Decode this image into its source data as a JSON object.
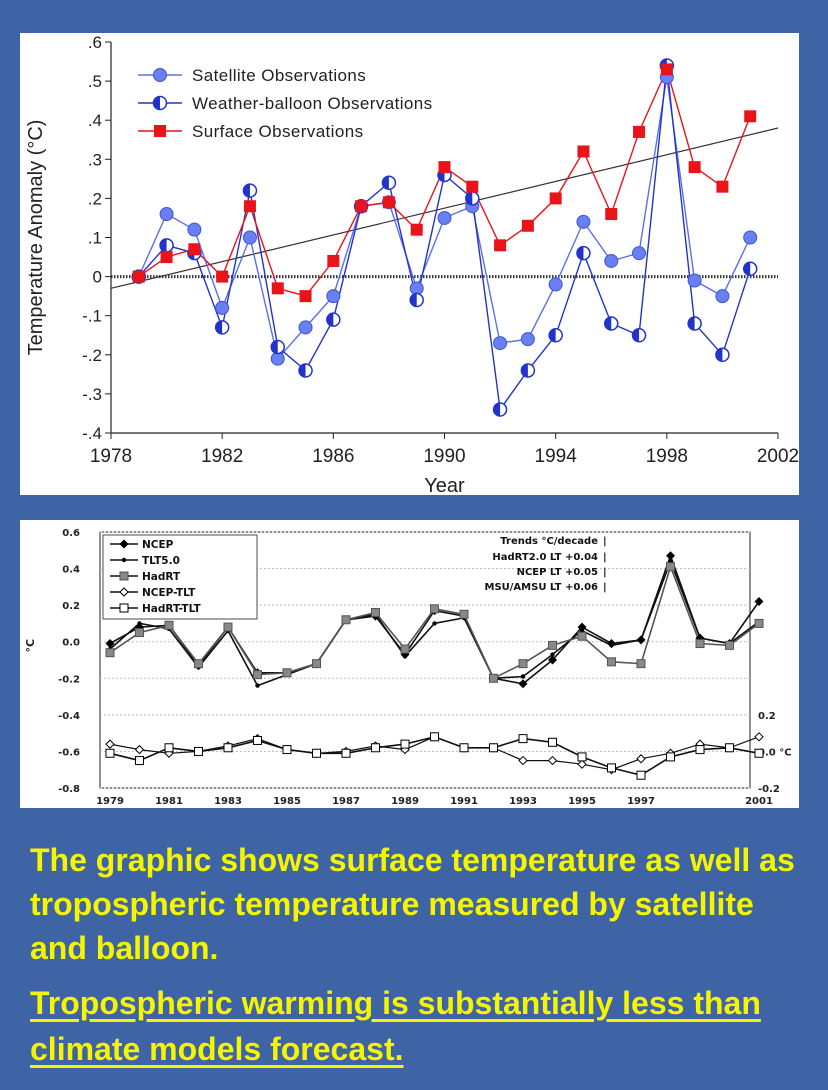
{
  "chart_data": [
    {
      "type": "line",
      "xlabel": "Year",
      "ylabel": "Temperature Anomaly (°C)",
      "xlim": [
        1978,
        2002
      ],
      "ylim": [
        -0.4,
        0.6
      ],
      "xticks": [
        1978,
        1982,
        1986,
        1990,
        1994,
        1998,
        2002
      ],
      "xtick_labels": [
        "1978",
        "1982",
        "1986",
        "1990",
        "1994",
        "1998",
        "2002"
      ],
      "yticks": [
        -0.4,
        -0.3,
        -0.2,
        -0.1,
        0,
        0.1,
        0.2,
        0.3,
        0.4,
        0.5,
        0.6
      ],
      "ytick_labels": [
        "-.4",
        "-.3",
        "-.2",
        "-.1",
        "0",
        ".1",
        ".2",
        ".3",
        ".4",
        ".5",
        ".6"
      ],
      "legend_position": "top-left",
      "x": [
        1979,
        1980,
        1981,
        1982,
        1983,
        1984,
        1985,
        1986,
        1987,
        1988,
        1989,
        1990,
        1991,
        1992,
        1993,
        1994,
        1995,
        1996,
        1997,
        1998,
        1999,
        2000,
        2001
      ],
      "series": [
        {
          "name": "Satellite Observations",
          "color": "#5a6ff0",
          "marker": "circle",
          "values": [
            0.0,
            0.16,
            0.12,
            -0.08,
            0.1,
            -0.21,
            -0.13,
            -0.05,
            0.18,
            0.19,
            -0.03,
            0.15,
            0.18,
            -0.17,
            -0.16,
            -0.02,
            0.14,
            0.04,
            0.06,
            0.51,
            -0.01,
            -0.05,
            0.1
          ]
        },
        {
          "name": "Weather-balloon Observations",
          "color": "#2233cc",
          "marker": "half-circle",
          "values": [
            0.0,
            0.08,
            0.06,
            -0.13,
            0.22,
            -0.18,
            -0.24,
            -0.11,
            0.18,
            0.24,
            -0.06,
            0.26,
            0.2,
            -0.34,
            -0.24,
            -0.15,
            0.06,
            -0.12,
            -0.15,
            0.54,
            -0.12,
            -0.2,
            0.02
          ]
        },
        {
          "name": "Surface Observations",
          "color": "#e8141a",
          "marker": "square",
          "values": [
            0.0,
            0.05,
            0.07,
            0.0,
            0.18,
            -0.03,
            -0.05,
            0.04,
            0.18,
            0.19,
            0.12,
            0.28,
            0.23,
            0.08,
            0.13,
            0.2,
            0.32,
            0.16,
            0.37,
            0.53,
            0.28,
            0.23,
            0.41
          ]
        }
      ],
      "trend_line": {
        "x": [
          1978,
          2002
        ],
        "y": [
          -0.03,
          0.38
        ]
      }
    },
    {
      "type": "line",
      "ylabel": "°C",
      "ylim": [
        -0.8,
        0.6
      ],
      "yticks": [
        "0.6",
        "0.4",
        "0.2",
        "0.0",
        "-0.2",
        "-0.4",
        "-0.6",
        "-0.8"
      ],
      "right_axis_ticks": [
        "0.2",
        "0.0 °C",
        "-0.2"
      ],
      "xtick_labels": [
        "1979",
        "1981",
        "1983",
        "1985",
        "1987",
        "1989",
        "1991",
        "1993",
        "1995",
        "1997",
        "2001"
      ],
      "legend_position": "top-left",
      "trends_box": {
        "title": "Trends °C/decade",
        "rows": [
          "HadRT2.0 LT +0.04",
          "NCEP LT +0.05",
          "MSU/AMSU LT +0.06"
        ]
      },
      "x": [
        1979,
        1980,
        1981,
        1982,
        1983,
        1984,
        1985,
        1986,
        1987,
        1988,
        1989,
        1990,
        1991,
        1992,
        1993,
        1994,
        1995,
        1996,
        1997,
        1998,
        1999,
        2000,
        2001
      ],
      "series": [
        {
          "name": "NCEP",
          "marker": "diamond",
          "values": [
            -0.01,
            0.08,
            0.09,
            -0.13,
            0.08,
            -0.17,
            -0.17,
            -0.12,
            0.12,
            0.14,
            -0.07,
            0.17,
            0.14,
            -0.2,
            -0.23,
            -0.1,
            0.08,
            -0.01,
            0.01,
            0.47,
            0.02,
            -0.01,
            0.22
          ]
        },
        {
          "name": "TLT5.0",
          "marker": "dot",
          "values": [
            -0.04,
            0.1,
            0.07,
            -0.14,
            0.06,
            -0.24,
            -0.18,
            -0.12,
            0.12,
            0.15,
            -0.08,
            0.1,
            0.13,
            -0.2,
            -0.19,
            -0.07,
            0.06,
            -0.02,
            0.01,
            0.44,
            0.02,
            -0.01,
            0.11
          ]
        },
        {
          "name": "HadRT",
          "marker": "filled-square",
          "values": [
            -0.06,
            0.05,
            0.09,
            -0.12,
            0.08,
            -0.18,
            -0.17,
            -0.12,
            0.12,
            0.16,
            -0.04,
            0.18,
            0.15,
            -0.2,
            -0.12,
            -0.02,
            0.03,
            -0.11,
            -0.12,
            0.41,
            -0.01,
            -0.02,
            0.1
          ]
        },
        {
          "name": "NCEP-TLT",
          "marker": "open-diamond",
          "values": [
            0.04,
            0.01,
            -0.01,
            0.0,
            0.03,
            0.07,
            0.01,
            -0.01,
            0.0,
            0.03,
            0.01,
            0.08,
            0.02,
            0.02,
            -0.05,
            -0.05,
            -0.07,
            -0.1,
            -0.04,
            -0.01,
            0.04,
            0.02,
            0.08
          ]
        },
        {
          "name": "HadRT-TLT",
          "marker": "open-square",
          "values": [
            -0.01,
            -0.05,
            0.02,
            0.0,
            0.02,
            0.06,
            0.01,
            -0.01,
            -0.01,
            0.02,
            0.04,
            0.08,
            0.02,
            0.02,
            0.07,
            0.05,
            -0.03,
            -0.09,
            -0.13,
            -0.03,
            0.01,
            0.02,
            -0.01
          ]
        }
      ]
    }
  ],
  "captions": {
    "line1": "The graphic shows surface temperature as well as tropospheric temperature measured by satellite and balloon.",
    "line2": "Tropospheric warming is substantially less than climate models forecast."
  },
  "colors": {
    "background": "#3f64a6",
    "caption": "#f5f500"
  }
}
